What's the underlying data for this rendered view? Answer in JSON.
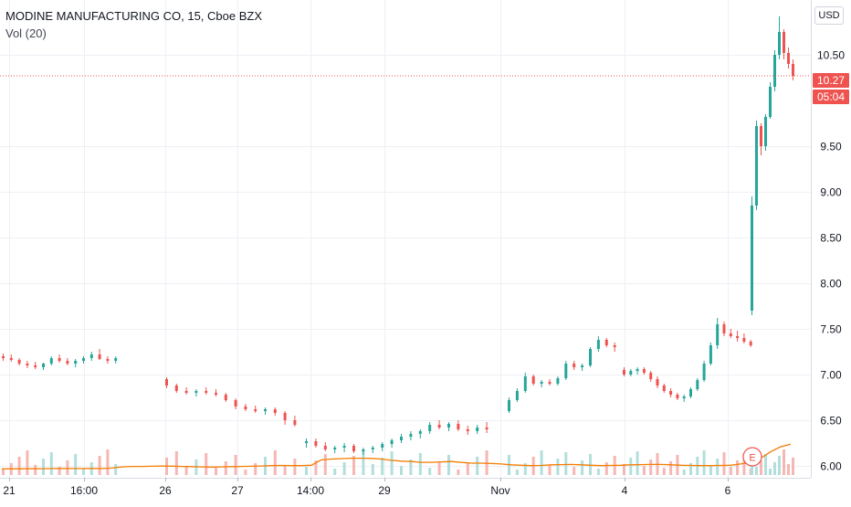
{
  "header": {
    "title": "MODINE MANUFACTURING CO, 15, Cboe BZX",
    "volume_label": "Vol (20)",
    "currency": "USD"
  },
  "badges": {
    "last_price": "10.27",
    "countdown": "05:04"
  },
  "colors": {
    "up": "#26a69a",
    "down": "#ef5350",
    "up_volume": "#b2dfdb",
    "down_volume": "#f5b7b4",
    "volume_ma": "#f57c00",
    "grid": "#eef0f4"
  },
  "earnings_marker": "E",
  "chart_data": {
    "type": "candlestick",
    "ylim": [
      5.95,
      10.95
    ],
    "y_ticks": [
      "6.00",
      "6.50",
      "7.00",
      "7.50",
      "8.00",
      "8.50",
      "9.00",
      "9.50",
      "10.50"
    ],
    "x_labels": [
      "21",
      "16:00",
      "26",
      "27",
      "14:00",
      "29",
      "Nov",
      "4",
      "6"
    ],
    "current_price": 10.27,
    "series": [
      {
        "values": [
          [
            7.2,
            7.23,
            7.15,
            7.18
          ],
          [
            7.18,
            7.22,
            7.14,
            7.16
          ],
          [
            7.16,
            7.18,
            7.1,
            7.12
          ],
          [
            7.12,
            7.15,
            7.07,
            7.1
          ],
          [
            7.1,
            7.14,
            7.06,
            7.08
          ],
          [
            7.08,
            7.13,
            7.05,
            7.12
          ],
          [
            7.12,
            7.2,
            7.1,
            7.18
          ],
          [
            7.18,
            7.22,
            7.13,
            7.15
          ],
          [
            7.15,
            7.18,
            7.1,
            7.12
          ],
          [
            7.12,
            7.17,
            7.08,
            7.15
          ],
          [
            7.15,
            7.2,
            7.12,
            7.18
          ],
          [
            7.18,
            7.25,
            7.15,
            7.22
          ],
          [
            7.22,
            7.28,
            7.16,
            7.17
          ],
          [
            7.17,
            7.2,
            7.12,
            7.15
          ],
          [
            7.15,
            7.2,
            7.12,
            7.18
          ]
        ]
      },
      {
        "values": [
          [
            6.95,
            6.97,
            6.85,
            6.88
          ],
          [
            6.88,
            6.9,
            6.8,
            6.82
          ],
          [
            6.82,
            6.86,
            6.78,
            6.8
          ],
          [
            6.8,
            6.84,
            6.76,
            6.82
          ],
          [
            6.82,
            6.86,
            6.78,
            6.8
          ],
          [
            6.8,
            6.84,
            6.76,
            6.78
          ],
          [
            6.78,
            6.8,
            6.7,
            6.72
          ],
          [
            6.72,
            6.74,
            6.62,
            6.65
          ],
          [
            6.65,
            6.68,
            6.6,
            6.62
          ],
          [
            6.62,
            6.66,
            6.58,
            6.6
          ],
          [
            6.6,
            6.64,
            6.56,
            6.62
          ],
          [
            6.62,
            6.64,
            6.55,
            6.58
          ],
          [
            6.58,
            6.6,
            6.45,
            6.5
          ],
          [
            6.5,
            6.55,
            6.43,
            6.45
          ]
        ]
      },
      {
        "values": [
          [
            6.25,
            6.3,
            6.2,
            6.27
          ],
          [
            6.27,
            6.3,
            6.2,
            6.22
          ],
          [
            6.22,
            6.26,
            6.16,
            6.18
          ],
          [
            6.18,
            6.22,
            6.14,
            6.2
          ],
          [
            6.2,
            6.25,
            6.15,
            6.22
          ],
          [
            6.22,
            6.24,
            6.14,
            6.16
          ],
          [
            6.16,
            6.2,
            6.12,
            6.18
          ],
          [
            6.18,
            6.22,
            6.14,
            6.2
          ],
          [
            6.2,
            6.26,
            6.16,
            6.24
          ],
          [
            6.24,
            6.3,
            6.2,
            6.28
          ],
          [
            6.28,
            6.35,
            6.25,
            6.32
          ],
          [
            6.32,
            6.38,
            6.28,
            6.35
          ],
          [
            6.35,
            6.4,
            6.3,
            6.38
          ],
          [
            6.38,
            6.48,
            6.35,
            6.45
          ],
          [
            6.45,
            6.5,
            6.4,
            6.42
          ],
          [
            6.42,
            6.48,
            6.38,
            6.46
          ],
          [
            6.46,
            6.5,
            6.38,
            6.4
          ],
          [
            6.4,
            6.44,
            6.34,
            6.38
          ],
          [
            6.38,
            6.45,
            6.35,
            6.42
          ],
          [
            6.42,
            6.48,
            6.36,
            6.4
          ]
        ]
      },
      {
        "values": [
          [
            6.6,
            6.75,
            6.58,
            6.72
          ],
          [
            6.72,
            6.85,
            6.7,
            6.82
          ],
          [
            6.82,
            7.02,
            6.8,
            6.98
          ],
          [
            6.98,
            7.0,
            6.88,
            6.9
          ],
          [
            6.9,
            6.94,
            6.86,
            6.92
          ],
          [
            6.92,
            6.95,
            6.88,
            6.9
          ],
          [
            6.9,
            6.98,
            6.88,
            6.96
          ],
          [
            6.96,
            7.15,
            6.94,
            7.12
          ],
          [
            7.12,
            7.15,
            7.05,
            7.08
          ],
          [
            7.08,
            7.12,
            7.04,
            7.1
          ],
          [
            7.1,
            7.3,
            7.08,
            7.28
          ],
          [
            7.28,
            7.42,
            7.25,
            7.38
          ],
          [
            7.38,
            7.4,
            7.3,
            7.32
          ],
          [
            7.32,
            7.35,
            7.25,
            7.3
          ]
        ]
      },
      {
        "values": [
          [
            7.05,
            7.08,
            6.98,
            7.0
          ],
          [
            7.0,
            7.06,
            6.98,
            7.04
          ],
          [
            7.04,
            7.08,
            7.0,
            7.06
          ],
          [
            7.06,
            7.08,
            7.0,
            7.02
          ],
          [
            7.02,
            7.04,
            6.92,
            6.95
          ],
          [
            6.95,
            6.98,
            6.85,
            6.88
          ],
          [
            6.88,
            6.9,
            6.8,
            6.82
          ],
          [
            6.82,
            6.85,
            6.75,
            6.78
          ],
          [
            6.78,
            6.8,
            6.72,
            6.74
          ],
          [
            6.74,
            6.78,
            6.7,
            6.76
          ],
          [
            6.76,
            6.86,
            6.74,
            6.84
          ],
          [
            6.84,
            6.96,
            6.82,
            6.94
          ],
          [
            6.94,
            7.15,
            6.92,
            7.12
          ],
          [
            7.12,
            7.35,
            7.1,
            7.32
          ],
          [
            7.32,
            7.62,
            7.28,
            7.55
          ],
          [
            7.55,
            7.58,
            7.42,
            7.45
          ],
          [
            7.45,
            7.5,
            7.4,
            7.42
          ],
          [
            7.42,
            7.48,
            7.36,
            7.4
          ],
          [
            7.4,
            7.45,
            7.34,
            7.36
          ],
          [
            7.36,
            7.38,
            7.3,
            7.32
          ]
        ]
      },
      {
        "values": [
          [
            7.7,
            8.95,
            7.65,
            8.85
          ],
          [
            8.85,
            9.78,
            8.8,
            9.72
          ],
          [
            9.72,
            9.75,
            9.4,
            9.5
          ],
          [
            9.5,
            9.85,
            9.45,
            9.82
          ],
          [
            9.82,
            10.2,
            9.8,
            10.15
          ],
          [
            10.15,
            10.55,
            10.1,
            10.5
          ],
          [
            10.5,
            10.92,
            10.45,
            10.75
          ],
          [
            10.75,
            10.78,
            10.45,
            10.52
          ],
          [
            10.52,
            10.58,
            10.35,
            10.4
          ],
          [
            10.4,
            10.45,
            10.22,
            10.27
          ]
        ]
      }
    ],
    "volume_ma": [
      0.3,
      0.32,
      0.31,
      0.33,
      0.32,
      0.34,
      0.36,
      0.35,
      0.34,
      0.36,
      0.35,
      0.4,
      0.55,
      0.6,
      0.6,
      0.62,
      0.65,
      0.63,
      0.6,
      0.58,
      0.55,
      0.52,
      0.55,
      0.58,
      0.6,
      0.62,
      0.65,
      0.7,
      0.72,
      0.7,
      0.7,
      0.75,
      1.4,
      1.5,
      1.55,
      1.6,
      1.6,
      1.58,
      1.5,
      1.35,
      1.25,
      1.2,
      1.1,
      1.1,
      1.15,
      1.2,
      1.1,
      1.0,
      1.0,
      0.95,
      0.9,
      0.8,
      0.75,
      0.7,
      0.72,
      0.8,
      0.82,
      0.85,
      0.8,
      0.75,
      0.7,
      0.72,
      0.75,
      0.8,
      0.82,
      0.85,
      0.85,
      0.8,
      0.75,
      0.72,
      0.7,
      0.7,
      0.72,
      0.75,
      0.9,
      1.1,
      1.6,
      2.4,
      3.0,
      3.3
    ]
  }
}
